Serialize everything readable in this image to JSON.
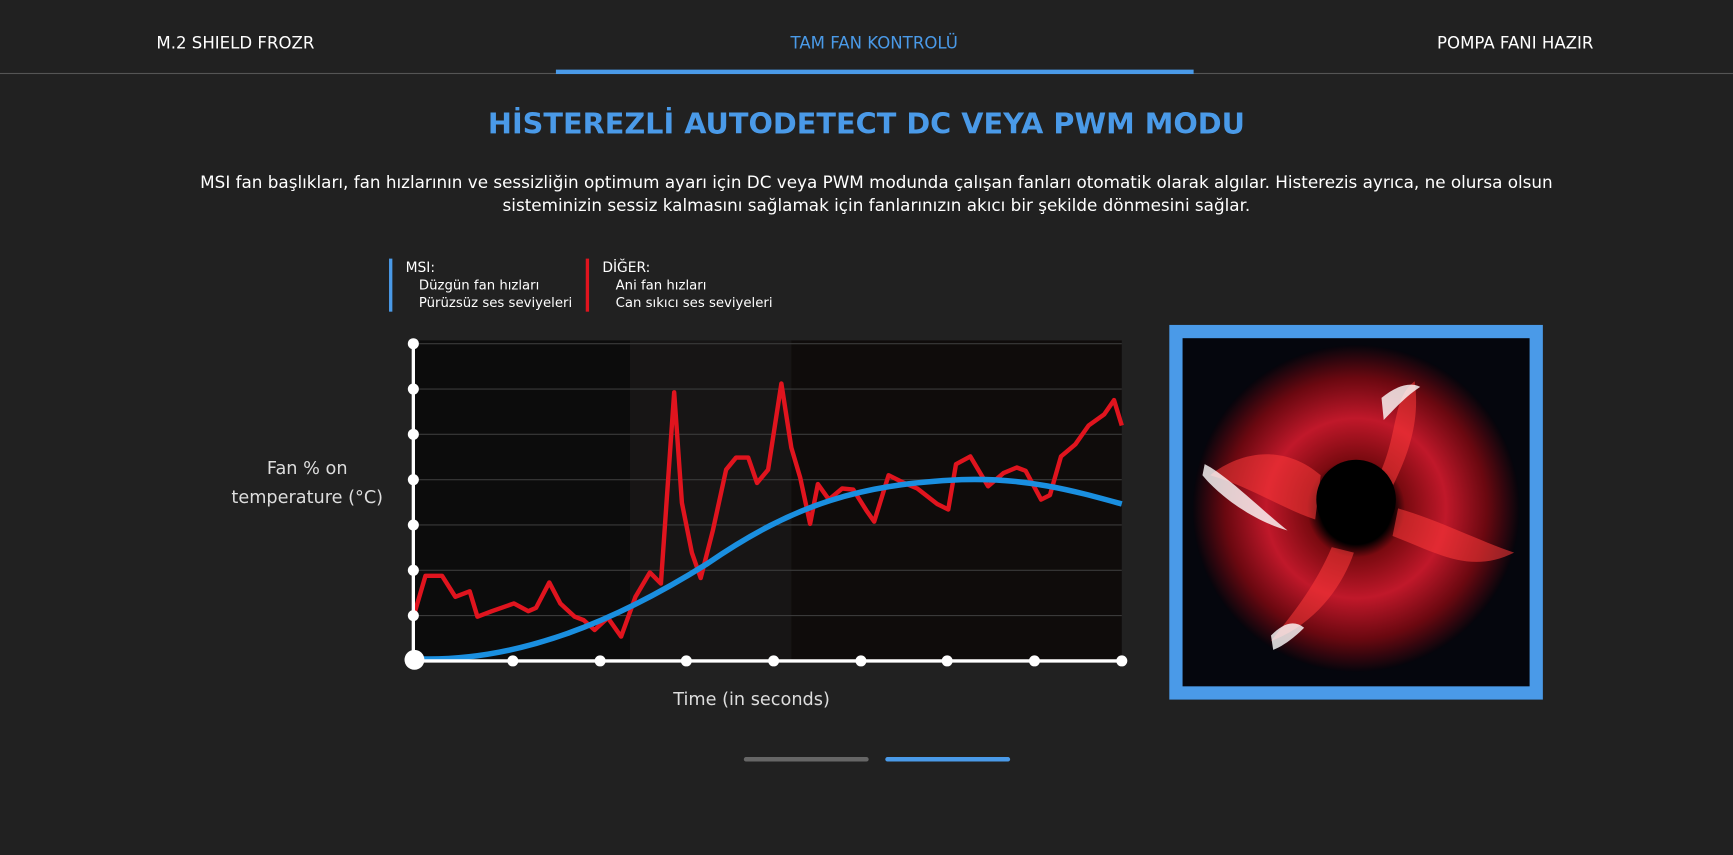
{
  "tabs": [
    "M.2 SHIELD FROZR",
    "TAM FAN KONTROLÜ",
    "POMPA FANI HAZIR"
  ],
  "active_tab": 1,
  "heading": "HİSTEREZLİ AUTODETECT DC VEYA PWM MODU",
  "description": "MSI fan başlıkları, fan hızlarının ve sessizliğin optimum ayarı için DC veya PWM modunda çalışan fanları otomatik olarak algılar. Histerezis ayrıca, ne olursa olsun sisteminizin sessiz kalmasını sağlamak için fanlarınızın akıcı bir şekilde dönmesini sağlar.",
  "legend": [
    {
      "title": "MSI:",
      "items": [
        "Düzgün fan hızları",
        "Pürüzsüz ses seviyeleri"
      ],
      "color": "#4a9ae8"
    },
    {
      "title": "DİĞER:",
      "items": [
        "Ani fan hızları",
        "Can sıkıcı ses seviyeleri"
      ],
      "color": "#e0141e"
    }
  ],
  "chart": {
    "y_label_lines": [
      "Fan % on",
      "temperature (°C)"
    ],
    "x_label": "Time (in seconds)"
  }
}
